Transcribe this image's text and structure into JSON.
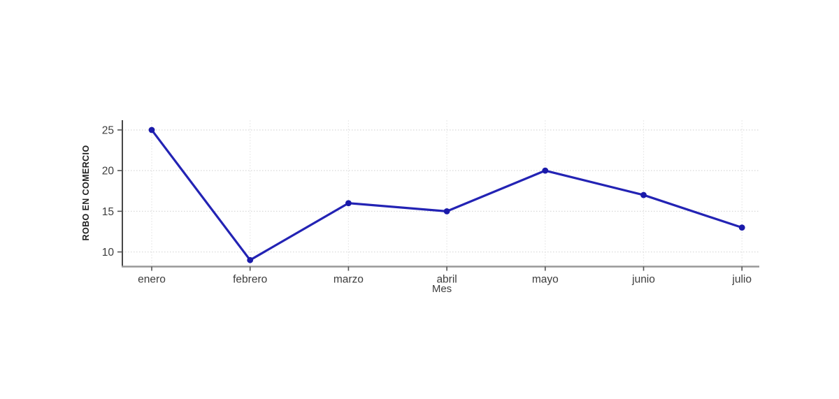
{
  "figure": {
    "background": "#ffffff"
  },
  "chart_data": {
    "type": "line",
    "title": "",
    "xlabel": "Mes",
    "ylabel": "ROBO EN COMERCIO",
    "categories": [
      "enero",
      "febrero",
      "marzo",
      "abril",
      "mayo",
      "junio",
      "julio"
    ],
    "series": [
      {
        "name": "ROBO EN COMERCIO",
        "values": [
          25,
          9,
          16,
          15,
          20,
          17,
          13
        ]
      }
    ],
    "y_ticks": [
      10,
      15,
      20,
      25
    ],
    "ylim": [
      8.2,
      26.2
    ],
    "grid": true,
    "legend": false,
    "colors": {
      "line": "#2323b4",
      "marker": "#1a1aaa",
      "h_grid": "#d8d8d8",
      "v_grid": "#ebebeb",
      "left_spine": "#333333",
      "bottom_spine": "#999999",
      "tick_mark": "#555555",
      "tick_text": "#3d3d3d",
      "axis_label": "#3d3d3d",
      "ylabel_text": "#1f1f1f"
    }
  }
}
